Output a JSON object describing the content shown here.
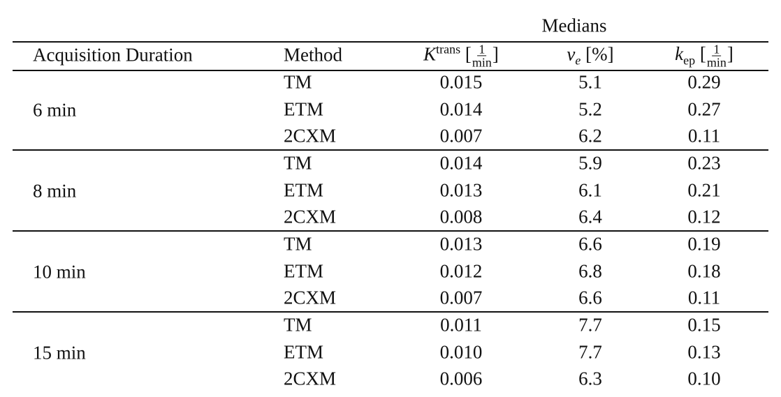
{
  "header": {
    "group": "Medians"
  },
  "table": {
    "columns": [
      {
        "label": "Acquisition Duration"
      },
      {
        "label": "Method"
      },
      {
        "symbol": "K",
        "sup": "trans",
        "open": "[",
        "num": "1",
        "den": "min",
        "close": "]"
      },
      {
        "symbol": "v",
        "sub": "e",
        "unit": "[%]"
      },
      {
        "symbol": "k",
        "sub": "ep",
        "open": "[",
        "num": "1",
        "den": "min",
        "close": "]"
      }
    ],
    "groups": [
      {
        "duration": "6 min",
        "rows": [
          [
            "TM",
            "0.015",
            "5.1",
            "0.29"
          ],
          [
            "ETM",
            "0.014",
            "5.2",
            "0.27"
          ],
          [
            "2CXM",
            "0.007",
            "6.2",
            "0.11"
          ]
        ]
      },
      {
        "duration": "8 min",
        "rows": [
          [
            "TM",
            "0.014",
            "5.9",
            "0.23"
          ],
          [
            "ETM",
            "0.013",
            "6.1",
            "0.21"
          ],
          [
            "2CXM",
            "0.008",
            "6.4",
            "0.12"
          ]
        ]
      },
      {
        "duration": "10 min",
        "rows": [
          [
            "TM",
            "0.013",
            "6.6",
            "0.19"
          ],
          [
            "ETM",
            "0.012",
            "6.8",
            "0.18"
          ],
          [
            "2CXM",
            "0.007",
            "6.6",
            "0.11"
          ]
        ]
      },
      {
        "duration": "15 min",
        "rows": [
          [
            "TM",
            "0.011",
            "7.7",
            "0.15"
          ],
          [
            "ETM",
            "0.010",
            "7.7",
            "0.13"
          ],
          [
            "2CXM",
            "0.006",
            "6.3",
            "0.10"
          ]
        ]
      }
    ]
  }
}
